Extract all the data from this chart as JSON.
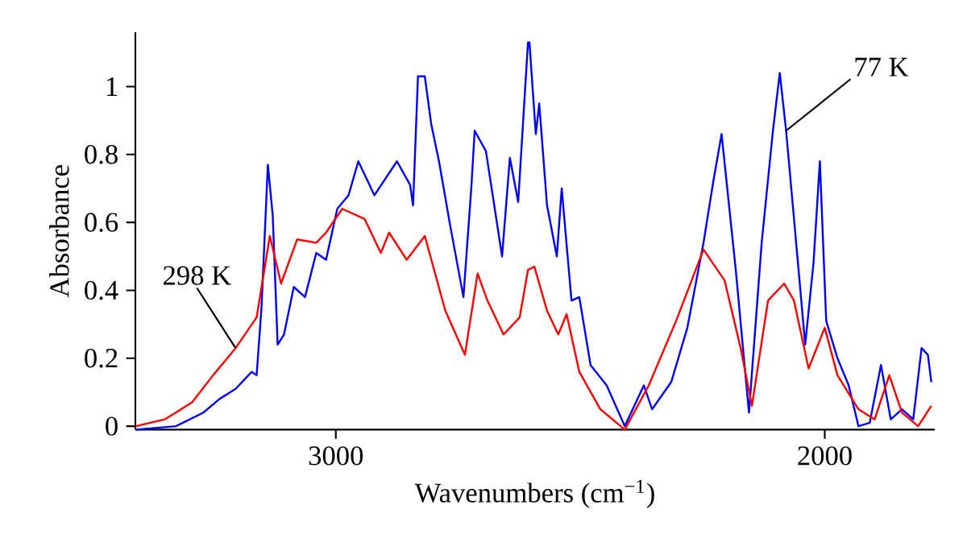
{
  "chart_data": {
    "type": "line",
    "xlabel": "Wavenumbers (cm$^{−1}$)",
    "ylabel": "Absorbance",
    "xlim": [
      3410,
      1775
    ],
    "xticks": [
      3000,
      2000
    ],
    "ylim": [
      -0.01,
      1.16
    ],
    "yticks": [
      0,
      0.2,
      0.4,
      0.6,
      0.8,
      1
    ],
    "marker": "none",
    "line_style": "solid",
    "series": [
      {
        "name": "77 K",
        "color": "#0000ff",
        "x": [
          3409,
          3327,
          3271,
          3238,
          3205,
          3172,
          3162,
          3152,
          3139,
          3129,
          3119,
          3106,
          3086,
          3063,
          3040,
          3020,
          2997,
          2974,
          2954,
          2921,
          2875,
          2848,
          2842,
          2832,
          2818,
          2805,
          2789,
          2766,
          2739,
          2723,
          2716,
          2693,
          2660,
          2644,
          2627,
          2607,
          2604,
          2591,
          2584,
          2568,
          2548,
          2538,
          2518,
          2502,
          2479,
          2446,
          2409,
          2370,
          2353,
          2314,
          2281,
          2248,
          2228,
          2211,
          2182,
          2155,
          2129,
          2106,
          2092,
          2079,
          2056,
          2040,
          2023,
          2010,
          1997,
          1974,
          1951,
          1931,
          1908,
          1885,
          1865,
          1842,
          1819,
          1802,
          1789,
          1782
        ],
        "values": [
          -0.01,
          0.0,
          0.04,
          0.08,
          0.11,
          0.16,
          0.15,
          0.35,
          0.77,
          0.62,
          0.24,
          0.27,
          0.41,
          0.38,
          0.51,
          0.49,
          0.64,
          0.68,
          0.78,
          0.68,
          0.78,
          0.71,
          0.65,
          1.03,
          1.03,
          0.89,
          0.78,
          0.59,
          0.38,
          0.7,
          0.87,
          0.81,
          0.5,
          0.79,
          0.66,
          1.13,
          1.13,
          0.86,
          0.95,
          0.65,
          0.5,
          0.7,
          0.37,
          0.38,
          0.18,
          0.12,
          0.0,
          0.12,
          0.05,
          0.13,
          0.29,
          0.54,
          0.72,
          0.86,
          0.46,
          0.04,
          0.54,
          0.87,
          1.04,
          0.87,
          0.5,
          0.24,
          0.48,
          0.78,
          0.31,
          0.2,
          0.12,
          0.0,
          0.01,
          0.18,
          0.02,
          0.05,
          0.02,
          0.23,
          0.21,
          0.13
        ]
      },
      {
        "name": "298 K",
        "color": "#ff0000",
        "x": [
          3409,
          3350,
          3294,
          3251,
          3205,
          3162,
          3135,
          3112,
          3079,
          3040,
          3020,
          2987,
          2941,
          2908,
          2891,
          2855,
          2818,
          2776,
          2736,
          2710,
          2690,
          2657,
          2624,
          2607,
          2594,
          2568,
          2545,
          2528,
          2502,
          2459,
          2409,
          2360,
          2304,
          2248,
          2205,
          2172,
          2149,
          2116,
          2083,
          2063,
          2033,
          2000,
          1974,
          1931,
          1898,
          1868,
          1842,
          1809,
          1782
        ],
        "values": [
          0.0,
          0.02,
          0.07,
          0.15,
          0.23,
          0.32,
          0.56,
          0.42,
          0.55,
          0.54,
          0.57,
          0.64,
          0.61,
          0.51,
          0.57,
          0.49,
          0.56,
          0.34,
          0.21,
          0.45,
          0.37,
          0.27,
          0.32,
          0.46,
          0.47,
          0.34,
          0.27,
          0.33,
          0.16,
          0.05,
          -0.01,
          0.12,
          0.31,
          0.52,
          0.43,
          0.23,
          0.06,
          0.37,
          0.42,
          0.37,
          0.17,
          0.29,
          0.15,
          0.05,
          0.02,
          0.15,
          0.04,
          0.0,
          0.06
        ]
      }
    ]
  }
}
